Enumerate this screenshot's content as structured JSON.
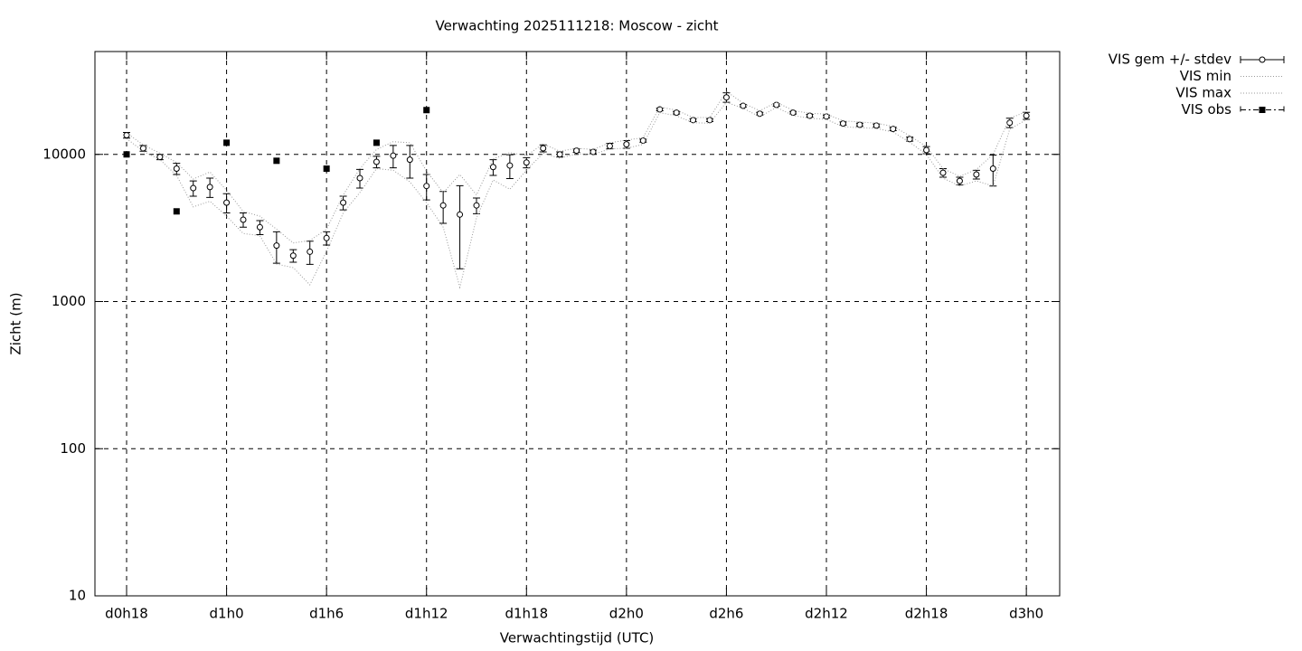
{
  "chart_data": {
    "type": "line",
    "title": "Verwachting 2025111218: Moscow - zicht",
    "x_label": "Verwachtingstijd (UTC)",
    "y_label": "Zicht (m)",
    "x": [
      18,
      19,
      20,
      21,
      22,
      23,
      24,
      25,
      26,
      27,
      28,
      29,
      30,
      31,
      32,
      33,
      34,
      35,
      36,
      37,
      38,
      39,
      40,
      41,
      42,
      43,
      44,
      45,
      46,
      47,
      48,
      49,
      50,
      51,
      52,
      53,
      54,
      55,
      56,
      57,
      58,
      59,
      60,
      61,
      62,
      63,
      64,
      65,
      66,
      67,
      68,
      69,
      70,
      71,
      72
    ],
    "series": [
      {
        "name": "VIS gem +/- stdev",
        "color": "#000000",
        "style": "points-errorbars",
        "values": [
          13500,
          11000,
          9600,
          8000,
          5900,
          6000,
          4700,
          3600,
          3200,
          2400,
          2050,
          2180,
          2700,
          4700,
          6900,
          8900,
          9800,
          9200,
          6100,
          4500,
          3900,
          4500,
          8200,
          8400,
          8800,
          11000,
          10000,
          10600,
          10400,
          11400,
          11700,
          12400,
          20200,
          19200,
          17100,
          17100,
          24400,
          21400,
          18900,
          21700,
          19200,
          18300,
          18100,
          16200,
          15900,
          15700,
          14900,
          12700,
          10700,
          7500,
          6600,
          7300,
          8000,
          16400,
          18300
        ],
        "errors": [
          600,
          500,
          400,
          700,
          700,
          900,
          700,
          400,
          350,
          580,
          200,
          390,
          280,
          500,
          1000,
          800,
          1700,
          2300,
          1200,
          1100,
          2230,
          550,
          1000,
          1550,
          700,
          600,
          400,
          300,
          300,
          500,
          700,
          300,
          400,
          400,
          400,
          400,
          1800,
          400,
          400,
          400,
          400,
          400,
          400,
          400,
          400,
          400,
          400,
          400,
          600,
          500,
          400,
          500,
          1900,
          1200,
          1000
        ]
      },
      {
        "name": "VIS min",
        "color": "#999999",
        "style": "dotted",
        "values": [
          12800,
          10500,
          9200,
          7200,
          4400,
          4800,
          3800,
          2900,
          2800,
          1800,
          1700,
          1300,
          2200,
          4000,
          5500,
          8000,
          7800,
          6500,
          4700,
          3200,
          1250,
          3700,
          6700,
          5800,
          7800,
          10200,
          9400,
          10100,
          10000,
          10900,
          11000,
          11700,
          19200,
          18300,
          16400,
          16300,
          22600,
          20600,
          18000,
          20900,
          18400,
          17600,
          17300,
          15400,
          15200,
          15000,
          14200,
          12100,
          10000,
          6900,
          6100,
          6600,
          6100,
          14800,
          17200
        ]
      },
      {
        "name": "VIS max",
        "color": "#999999",
        "style": "dotted",
        "values": [
          14000,
          11600,
          10200,
          8800,
          6800,
          7600,
          5700,
          4100,
          3800,
          3100,
          2500,
          2600,
          3100,
          5300,
          8000,
          10800,
          12200,
          12000,
          7700,
          5500,
          7300,
          5300,
          9300,
          10300,
          9800,
          11800,
          10500,
          11000,
          10800,
          12000,
          12500,
          13000,
          21000,
          20000,
          17800,
          17800,
          26800,
          22300,
          19800,
          22600,
          19900,
          19000,
          18800,
          16900,
          16600,
          16300,
          15500,
          13400,
          11300,
          8000,
          7100,
          7900,
          10000,
          17600,
          19500
        ]
      },
      {
        "name": "VIS obs",
        "color": "#000000",
        "style": "squares",
        "x": [
          18,
          21,
          24,
          27,
          30,
          33,
          36
        ],
        "values": [
          10000,
          4100,
          12000,
          9050,
          8000,
          12000,
          20000
        ]
      }
    ],
    "xlim": [
      16.1,
      74
    ],
    "xticks": [
      {
        "value": 18,
        "label": "d0h18"
      },
      {
        "value": 24,
        "label": "d1h0"
      },
      {
        "value": 30,
        "label": "d1h6"
      },
      {
        "value": 36,
        "label": "d1h12"
      },
      {
        "value": 42,
        "label": "d1h18"
      },
      {
        "value": 48,
        "label": "d2h0"
      },
      {
        "value": 54,
        "label": "d2h6"
      },
      {
        "value": 60,
        "label": "d2h12"
      },
      {
        "value": 66,
        "label": "d2h18"
      },
      {
        "value": 72,
        "label": "d3h0"
      }
    ],
    "ylim": [
      10,
      50000
    ],
    "yticks": [
      10,
      100,
      1000,
      10000
    ],
    "log_scale_y": true,
    "grid": true,
    "legend": "outside-top-right"
  }
}
